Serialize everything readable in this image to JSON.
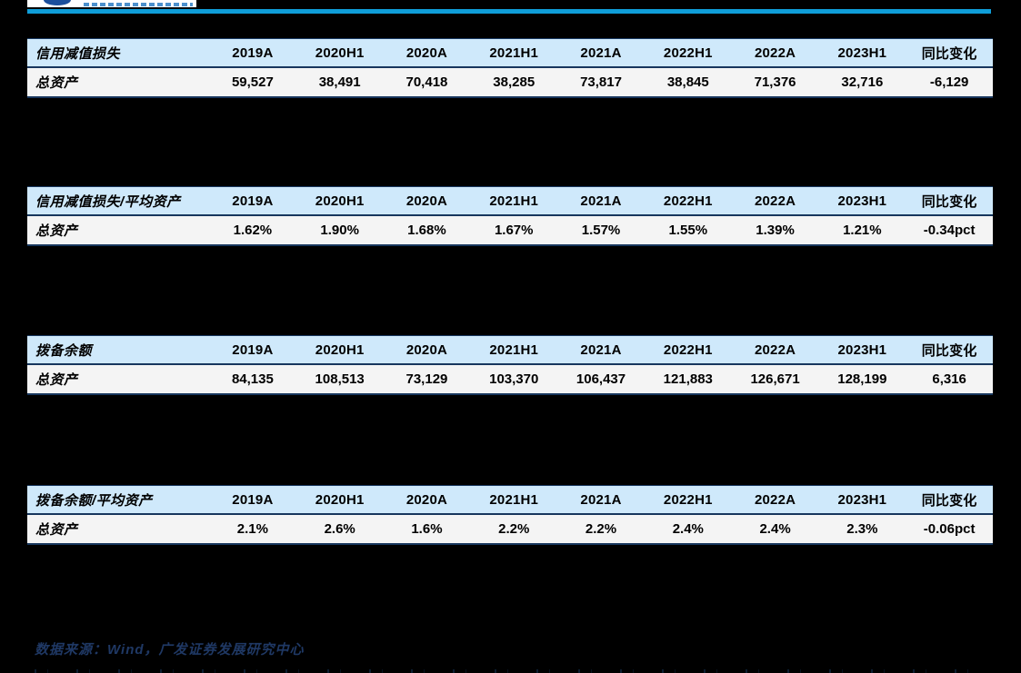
{
  "colors": {
    "accent": "#0f9ed9",
    "header-bg": "#cfe9fb",
    "row-bg": "#f4f4f4",
    "border": "#17365d",
    "footer-text": "#1f3864",
    "logo-blue": "#1b4f9c",
    "logo-text-blue": "#2d7cc3"
  },
  "columns": [
    "2019A",
    "2020H1",
    "2020A",
    "2021H1",
    "2021A",
    "2022H1",
    "2022A",
    "2023H1",
    "同比变化"
  ],
  "tables": [
    {
      "title": "信用减值损失",
      "row_label": "总资产",
      "values": [
        "59,527",
        "38,491",
        "70,418",
        "38,285",
        "73,817",
        "38,845",
        "71,376",
        "32,716",
        "-6,129"
      ]
    },
    {
      "title": "信用减值损失/平均资产",
      "row_label": "总资产",
      "values": [
        "1.62%",
        "1.90%",
        "1.68%",
        "1.67%",
        "1.57%",
        "1.55%",
        "1.39%",
        "1.21%",
        "-0.34pct"
      ]
    },
    {
      "title": "拨备余额",
      "row_label": "总资产",
      "values": [
        "84,135",
        "108,513",
        "73,129",
        "103,370",
        "106,437",
        "121,883",
        "126,671",
        "128,199",
        "6,316"
      ]
    },
    {
      "title": "拨备余额/平均资产",
      "row_label": "总资产",
      "values": [
        "2.1%",
        "2.6%",
        "1.6%",
        "2.2%",
        "2.2%",
        "2.4%",
        "2.4%",
        "2.3%",
        "-0.06pct"
      ]
    }
  ],
  "footer": {
    "source": "数据来源：Wind，广发证券发展研究中心"
  }
}
